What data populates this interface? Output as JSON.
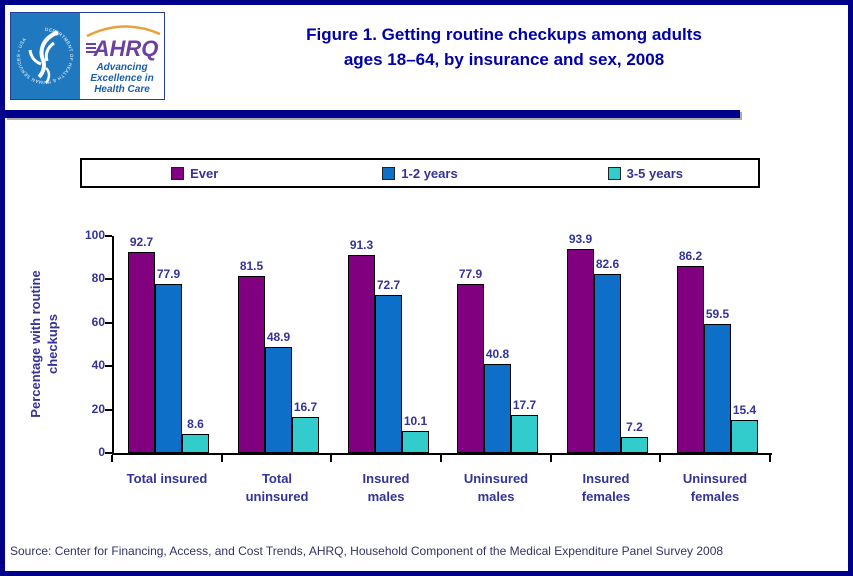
{
  "header": {
    "logo": {
      "ring_text": "DEPARTMENT OF HEALTH & HUMAN SERVICES • USA",
      "acronym": "AHRQ",
      "tagline": [
        "Advancing",
        "Excellence in",
        "Health Care"
      ]
    },
    "title_lines": [
      "Figure 1. Getting routine checkups among adults",
      "ages 18–64, by insurance and sex, 2008"
    ]
  },
  "chart_data": {
    "type": "bar",
    "title": "Figure 1. Getting routine checkups among adults ages 18–64, by insurance and sex, 2008",
    "categories": [
      "Total insured",
      "Total uninsured",
      "Insured males",
      "Uninsured males",
      "Insured females",
      "Uninsured females"
    ],
    "category_label_lines": [
      [
        "Total insured"
      ],
      [
        "Total",
        "uninsured"
      ],
      [
        "Insured",
        "males"
      ],
      [
        "Uninsured",
        "males"
      ],
      [
        "Insured",
        "females"
      ],
      [
        "Uninsured",
        "females"
      ]
    ],
    "series": [
      {
        "name": "Ever",
        "color": "#800080",
        "values": [
          92.7,
          81.5,
          91.3,
          77.9,
          93.9,
          86.2
        ]
      },
      {
        "name": "1-2 years",
        "color": "#0D6FC8",
        "values": [
          77.9,
          48.9,
          72.7,
          40.8,
          82.6,
          59.5
        ]
      },
      {
        "name": "3-5 years",
        "color": "#33CCCC",
        "values": [
          8.6,
          16.7,
          10.1,
          17.7,
          7.2,
          15.4
        ]
      }
    ],
    "ylabel_lines": [
      "Percentage with routine",
      "checkups"
    ],
    "xlabel": "",
    "ylim": [
      0,
      100
    ],
    "yticks": [
      0,
      20,
      40,
      60,
      80,
      100
    ],
    "grid": false,
    "legend_position": "top",
    "value_labels": true
  },
  "footer": {
    "source": "Source: Center for Financing, Access, and Cost Trends, AHRQ, Household Component of the Medical Expenditure Panel Survey 2008"
  },
  "colors": {
    "frame_border": "#00008B",
    "title_text": "#0000A8",
    "label_text": "#333399",
    "source_text": "#333366",
    "bar_border": "#000000",
    "hhs_blue": "#2079BF",
    "ahrq_purple": "#6B3FA3",
    "ahrq_arc_orange": "#E9A13B",
    "ahrq_tagline_blue": "#1B5FAA"
  }
}
